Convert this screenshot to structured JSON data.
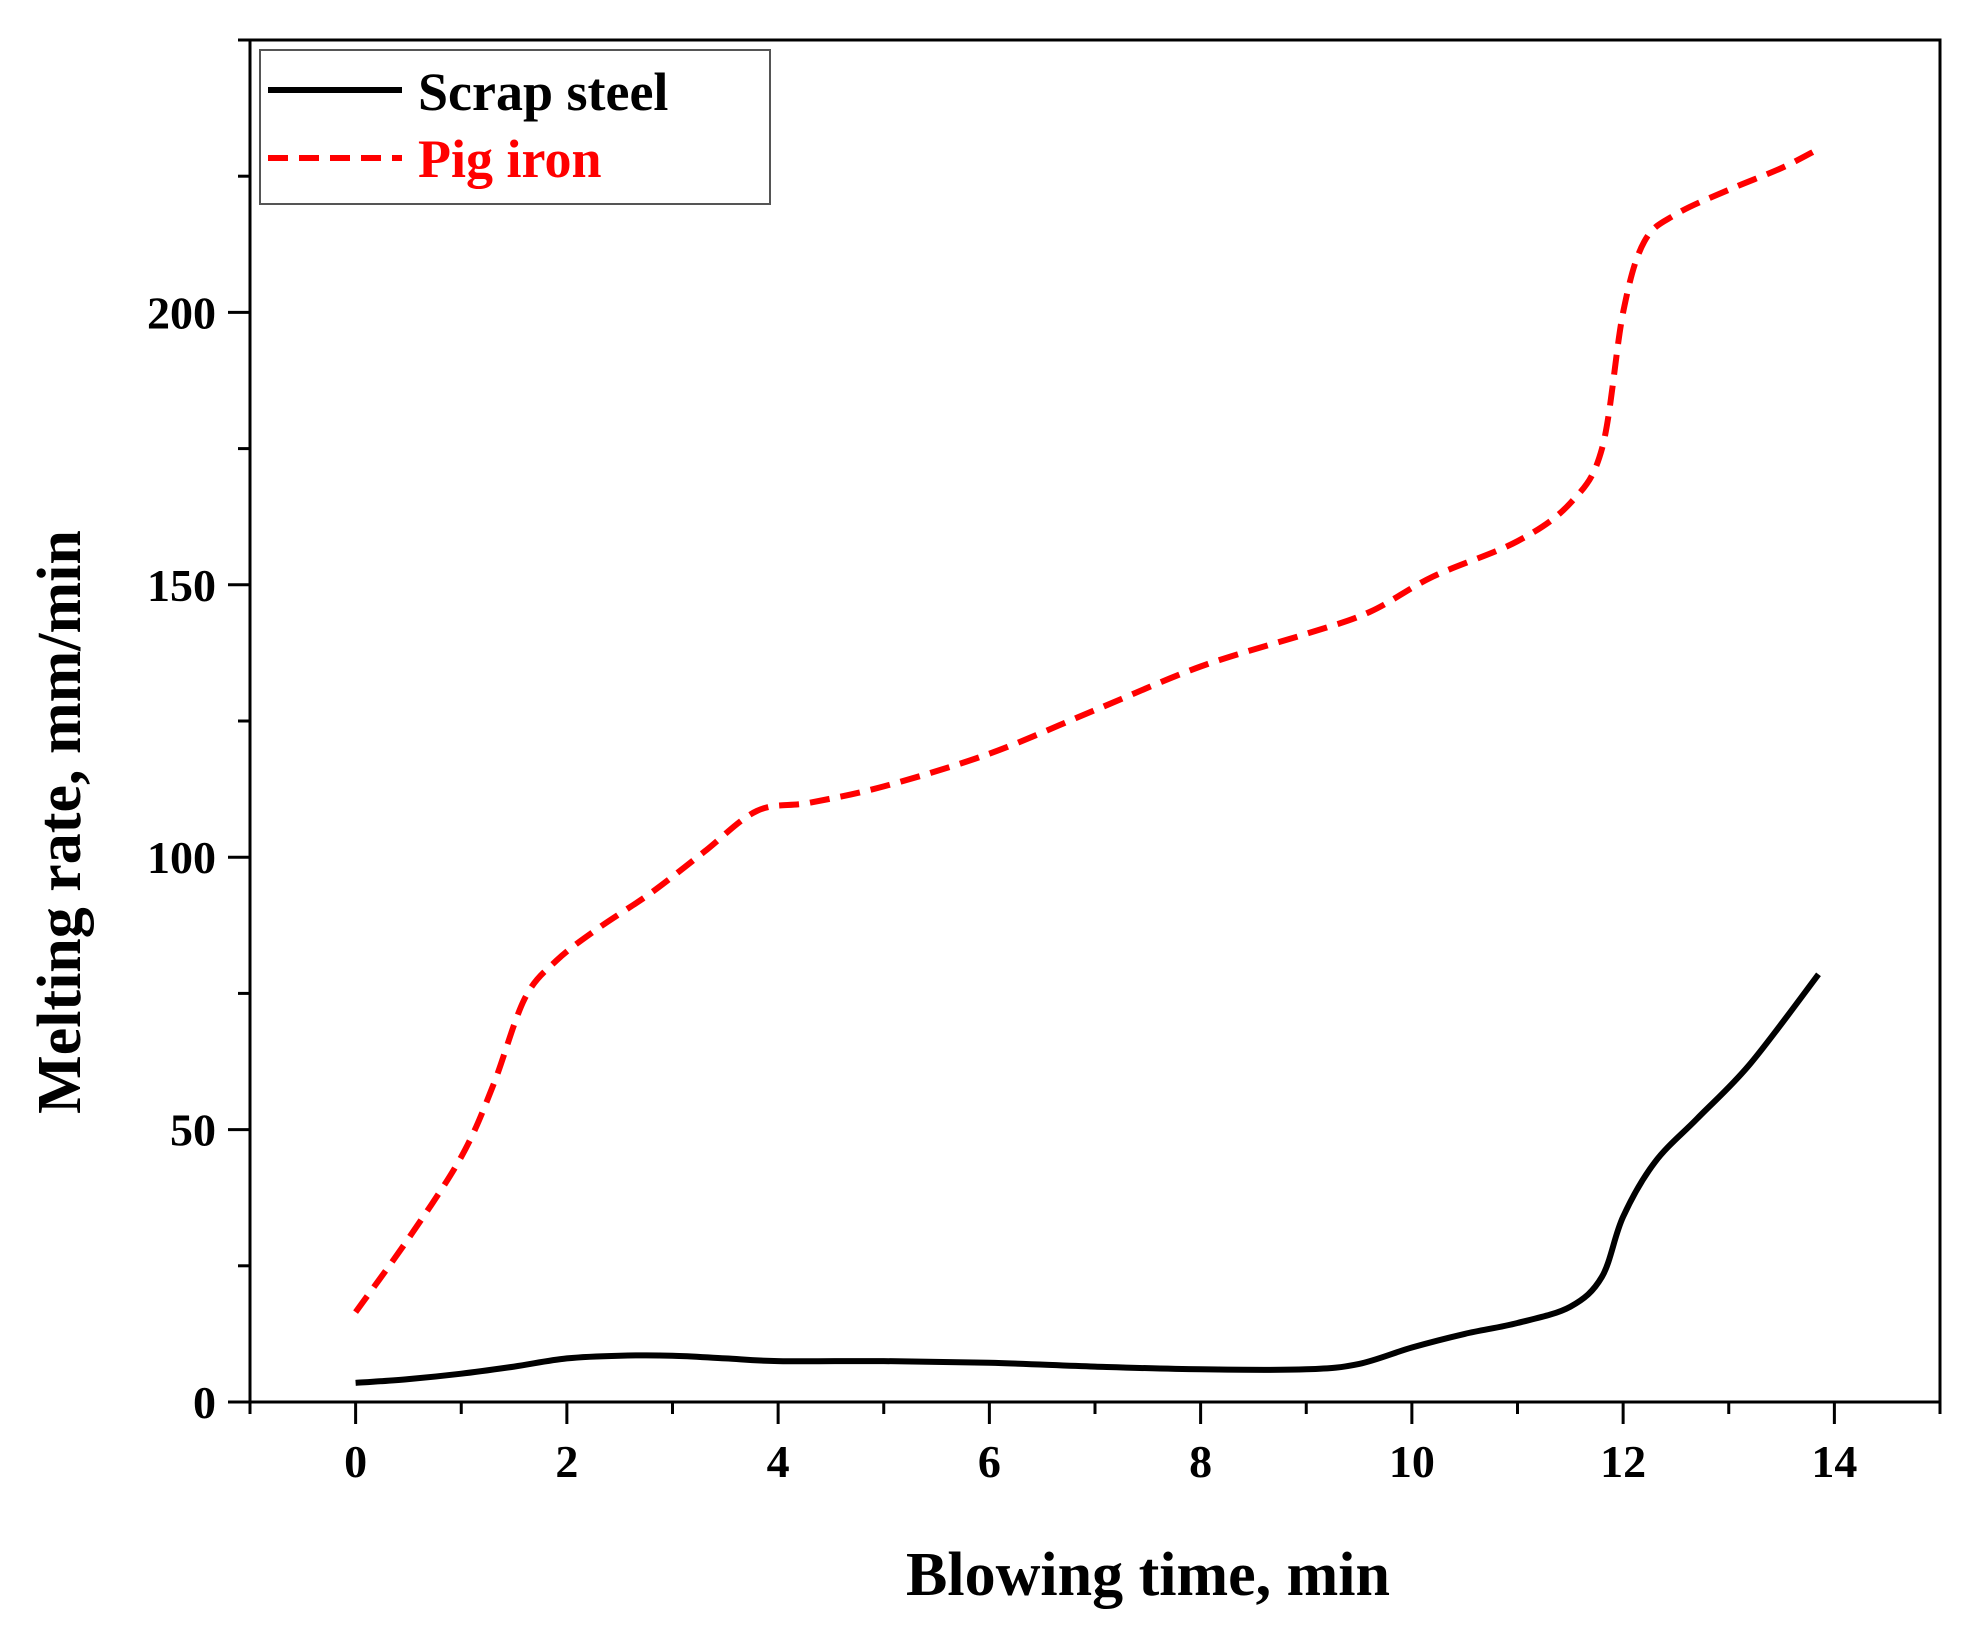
{
  "chart_data": {
    "type": "line",
    "title": "",
    "xlabel": "Blowing time, min",
    "ylabel": "Melting rate, mm/min",
    "xlim": [
      -1,
      15
    ],
    "ylim": [
      0,
      250
    ],
    "xticks": [
      0,
      2,
      4,
      6,
      8,
      10,
      12,
      14
    ],
    "xtick_labels": [
      "0",
      "2",
      "4",
      "6",
      "8",
      "10",
      "12",
      "14"
    ],
    "yticks": [
      0,
      50,
      100,
      150,
      200
    ],
    "ytick_labels": [
      "0",
      "50",
      "100",
      "150",
      "200"
    ],
    "grid": false,
    "legend_position": "top-left",
    "series": [
      {
        "name": "Scrap steel",
        "color": "#000000",
        "style": "solid",
        "x": [
          0,
          0.5,
          1.0,
          1.5,
          2.0,
          2.5,
          3.0,
          3.5,
          4.0,
          5.0,
          6.0,
          7.0,
          8.0,
          9.0,
          9.5,
          10.0,
          10.5,
          11.0,
          11.5,
          11.8,
          12.0,
          12.3,
          12.7,
          13.2,
          13.85
        ],
        "y": [
          3.5,
          4.2,
          5.2,
          6.5,
          8.0,
          8.5,
          8.5,
          8.0,
          7.5,
          7.5,
          7.2,
          6.5,
          6.0,
          6.0,
          7.0,
          10.0,
          12.5,
          14.5,
          17.5,
          23.0,
          34.0,
          44.0,
          52.0,
          62.0,
          78.5
        ]
      },
      {
        "name": "Pig iron",
        "color": "#ff0000",
        "style": "dashed",
        "x": [
          0,
          0.5,
          1.0,
          1.3,
          1.6,
          1.9,
          2.3,
          2.8,
          3.3,
          3.8,
          4.3,
          5.0,
          6.0,
          7.0,
          8.0,
          9.0,
          9.6,
          10.2,
          11.0,
          11.5,
          11.8,
          12.0,
          12.2,
          12.5,
          13.0,
          13.5,
          13.85
        ],
        "y": [
          16.5,
          30.0,
          45.0,
          58.0,
          74.0,
          81.0,
          87.0,
          93.5,
          101.0,
          108.5,
          110.0,
          113.0,
          119.0,
          127.0,
          135.0,
          141.0,
          145.0,
          151.5,
          158.0,
          165.0,
          175.0,
          200.0,
          213.0,
          218.0,
          222.5,
          226.5,
          230.0
        ]
      }
    ]
  }
}
